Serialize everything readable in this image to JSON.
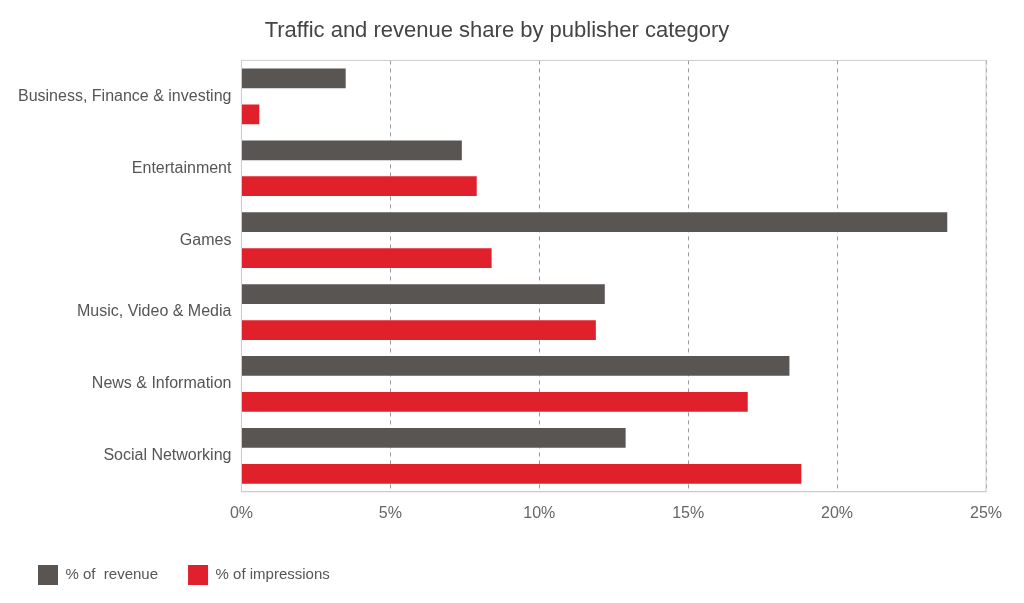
{
  "chart_data": {
    "type": "bar",
    "orientation": "horizontal",
    "title": "Traffic and revenue share by publisher category",
    "categories": [
      "Business, Finance & investing",
      "Entertainment",
      "Games",
      "Music, Video & Media",
      "News & Information",
      "Social Networking"
    ],
    "series": [
      {
        "name": "% of  revenue",
        "color": "#595553",
        "values": [
          3.5,
          7.4,
          23.7,
          12.2,
          18.4,
          12.9
        ]
      },
      {
        "name": "% of impressions",
        "color": "#e0202a",
        "values": [
          0.6,
          7.9,
          8.4,
          11.9,
          17.0,
          18.8
        ]
      }
    ],
    "xlim": [
      0,
      25
    ],
    "xticks": [
      {
        "value": 0,
        "label": "0%"
      },
      {
        "value": 5,
        "label": "5%"
      },
      {
        "value": 10,
        "label": "10%"
      },
      {
        "value": 15,
        "label": "15%"
      },
      {
        "value": 20,
        "label": "20%"
      },
      {
        "value": 25,
        "label": "25%"
      }
    ],
    "grid": "x",
    "legend": "bottom left"
  }
}
